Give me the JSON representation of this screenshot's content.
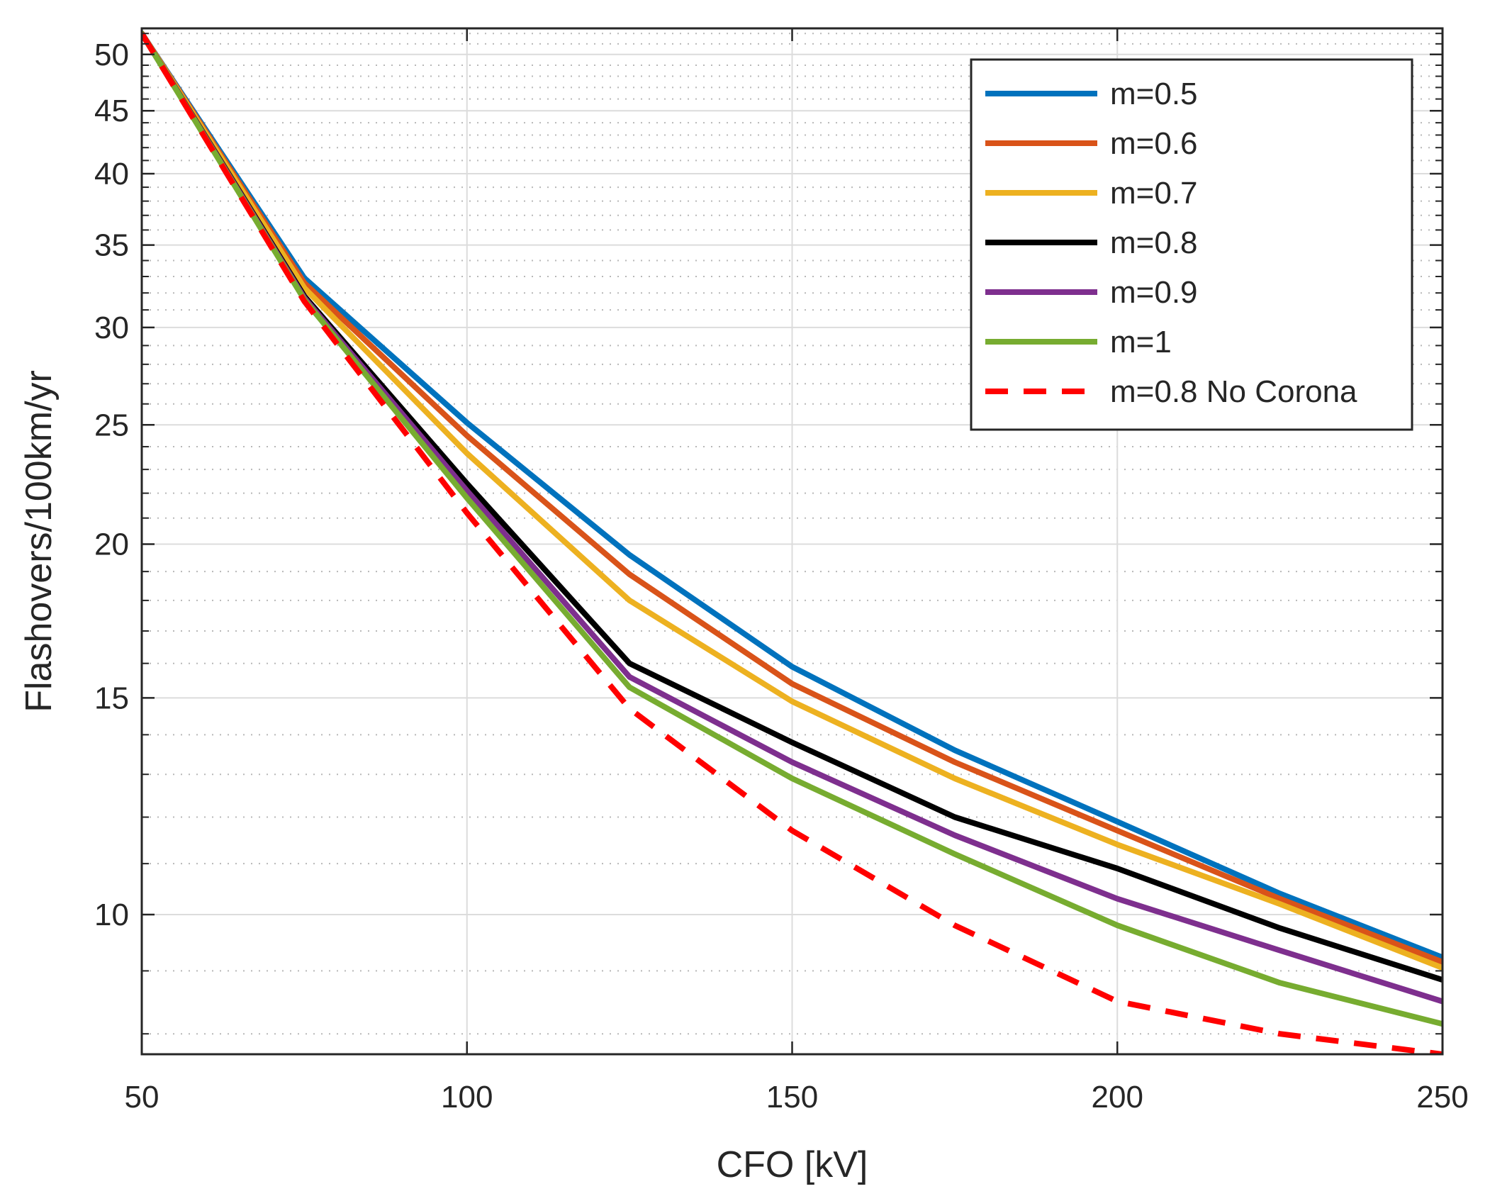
{
  "chart_data": {
    "type": "line",
    "title": "",
    "xlabel": "CFO [kV]",
    "ylabel": "Flashovers/100km/yr",
    "y_scale": "log",
    "xlim": [
      50,
      250
    ],
    "ylim": [
      7.7,
      52.5
    ],
    "grid": true,
    "minor_grid": true,
    "legend_position": "top-right",
    "x_ticks": [
      50,
      100,
      150,
      200,
      250
    ],
    "x_tick_labels": [
      "50",
      "100",
      "150",
      "200",
      "250"
    ],
    "y_ticks": [
      10,
      15,
      20,
      25,
      30,
      35,
      40,
      45,
      50
    ],
    "y_tick_labels": [
      "10",
      "15",
      "20",
      "25",
      "30",
      "35",
      "40",
      "45",
      "50"
    ],
    "y_minor_ticks": [
      8,
      9,
      11,
      12,
      13,
      14,
      16,
      17,
      18,
      19,
      21,
      22,
      23,
      24,
      26,
      27,
      28,
      29,
      31,
      32,
      33,
      34,
      36,
      37,
      38,
      39,
      41,
      42,
      43,
      44,
      46,
      47,
      48,
      49,
      51,
      52
    ],
    "x": [
      50,
      75,
      100,
      125,
      150,
      175,
      200,
      225,
      250
    ],
    "series": [
      {
        "name": "m=0.5",
        "color": "#0072BD",
        "dash": "solid",
        "values": [
          52.0,
          32.9,
          25.1,
          19.6,
          15.9,
          13.6,
          11.9,
          10.4,
          9.23
        ]
      },
      {
        "name": "m=0.6",
        "color": "#D95319",
        "dash": "solid",
        "values": [
          52.0,
          32.6,
          24.5,
          18.9,
          15.4,
          13.3,
          11.7,
          10.3,
          9.15
        ]
      },
      {
        "name": "m=0.7",
        "color": "#EDB120",
        "dash": "solid",
        "values": [
          52.0,
          32.3,
          23.7,
          18.0,
          14.9,
          12.9,
          11.4,
          10.2,
          9.05
        ]
      },
      {
        "name": "m=0.8",
        "color": "#000000",
        "dash": "solid",
        "values": [
          52.0,
          31.8,
          22.4,
          16.0,
          13.8,
          12.0,
          10.9,
          9.75,
          8.85
        ]
      },
      {
        "name": "m=0.9",
        "color": "#7E2F8E",
        "dash": "solid",
        "values": [
          52.0,
          31.7,
          22.1,
          15.6,
          13.3,
          11.6,
          10.3,
          9.35,
          8.5
        ]
      },
      {
        "name": "m=1",
        "color": "#77AC30",
        "dash": "solid",
        "values": [
          52.0,
          31.6,
          21.8,
          15.3,
          12.9,
          11.2,
          9.8,
          8.8,
          8.15
        ]
      },
      {
        "name": "m=0.8 No Corona",
        "color": "#FF0000",
        "dash": "dashed",
        "values": [
          52.0,
          31.5,
          21.2,
          14.7,
          11.7,
          9.8,
          8.5,
          8.0,
          7.7
        ]
      }
    ]
  }
}
